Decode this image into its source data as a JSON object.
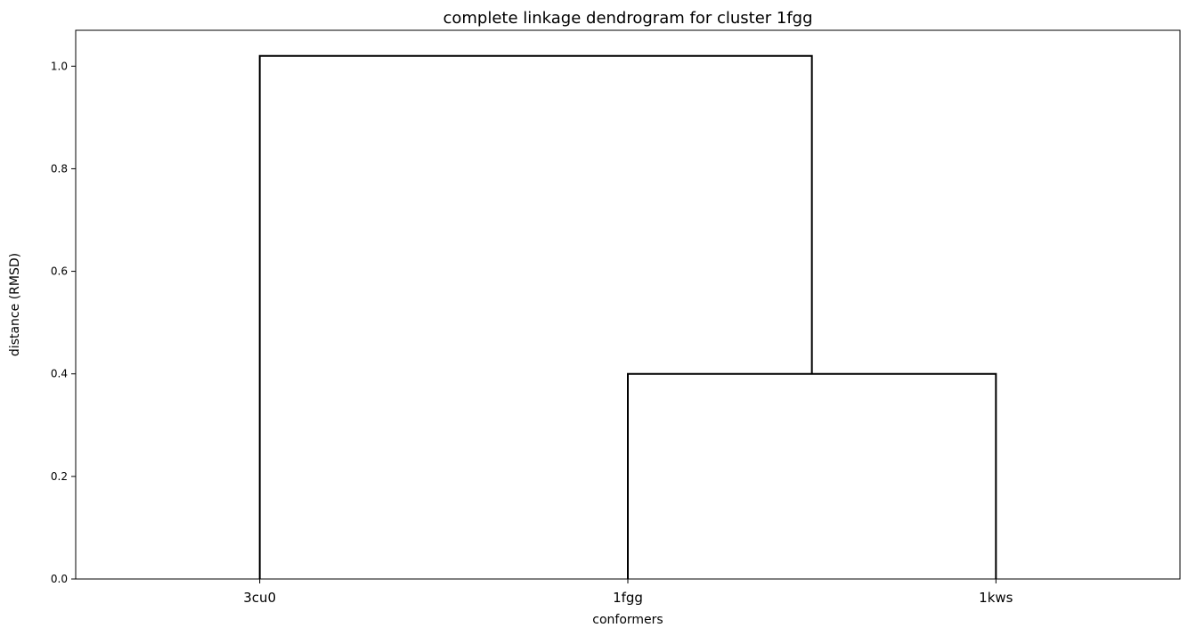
{
  "chart_data": {
    "type": "dendrogram",
    "title": "complete linkage dendrogram for cluster 1fgg",
    "xlabel": "conformers",
    "ylabel": "distance (RMSD)",
    "leaves": [
      "3cu0",
      "1fgg",
      "1kws"
    ],
    "merges": [
      {
        "left": "1fgg",
        "right": "1kws",
        "height": 0.4
      },
      {
        "left": "3cu0",
        "right": "cluster(1fgg,1kws)",
        "height": 1.02
      }
    ],
    "ylim": [
      0,
      1.07
    ],
    "yticks": [
      0.0,
      0.2,
      0.4,
      0.6,
      0.8,
      1.0
    ],
    "ytick_labels": [
      "0.0",
      "0.2",
      "0.4",
      "0.6",
      "0.8",
      "1.0"
    ],
    "grid": false,
    "link_color": "#000000"
  }
}
